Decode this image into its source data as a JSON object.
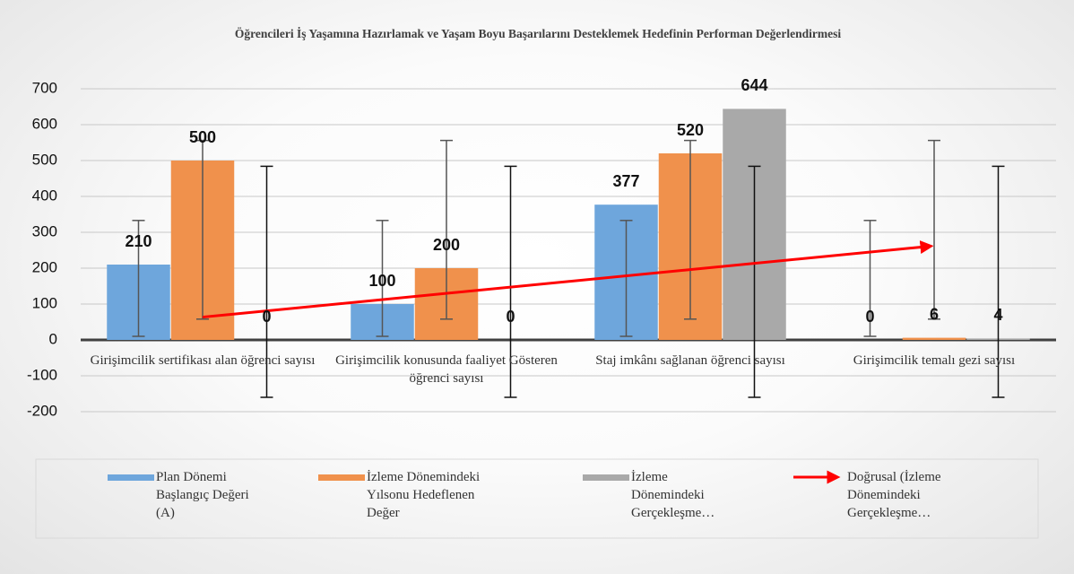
{
  "chart_data": {
    "type": "bar",
    "title": "Öğrencileri İş Yaşamına Hazırlamak ve Yaşam Boyu Başarılarını Desteklemek Hedefinin Performan Değerlendirmesi",
    "categories": [
      "Girişimcilik sertifikası alan öğrenci sayısı",
      "Girişimcilik konusunda faaliyet Gösteren öğrenci sayısı",
      "Staj imkânı sağlanan öğrenci sayısı",
      "Girişimcilik temalı gezi sayısı"
    ],
    "series": [
      {
        "name": "Plan Dönemi Başlangıç Değeri (A)",
        "color": "#6ea6dc",
        "values": [
          210,
          100,
          377,
          0
        ],
        "error_range": [
          10,
          333
        ]
      },
      {
        "name": "İzleme Dönemindeki Yılsonu Hedeflenen Değer",
        "color": "#f0914c",
        "values": [
          500,
          200,
          520,
          6
        ],
        "error_range": [
          58,
          556
        ]
      },
      {
        "name": "İzleme Dönemindeki Gerçekleşme…",
        "color": "#a9a9a9",
        "values": [
          0,
          0,
          644,
          4
        ],
        "error_range": [
          -160,
          484
        ]
      }
    ],
    "trendline": {
      "name": "Doğrusal (İzleme Dönemindeki Gerçekleşme…",
      "color": "#ff0000",
      "start": 63.6,
      "end": 260.4
    },
    "ylim": [
      -200,
      700
    ],
    "yticks": [
      -200,
      -100,
      0,
      100,
      200,
      300,
      400,
      500,
      600,
      700
    ],
    "grid": true,
    "legend": "bottom"
  }
}
